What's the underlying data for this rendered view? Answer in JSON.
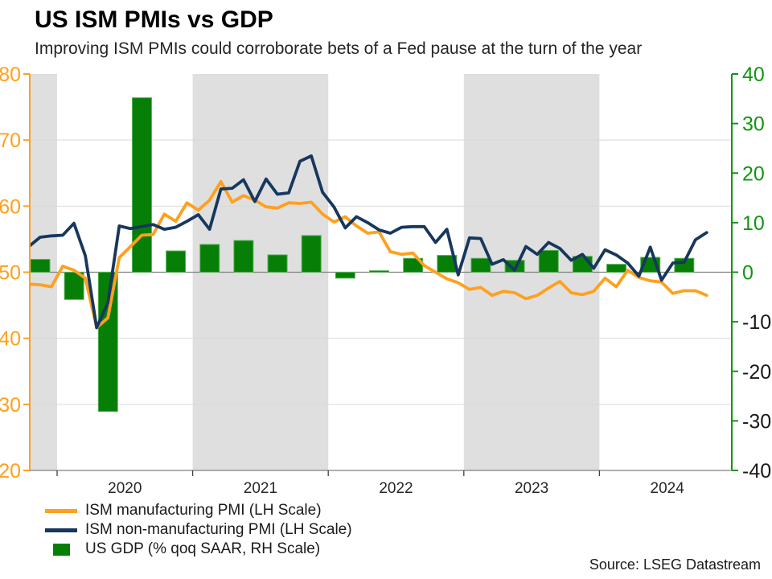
{
  "header": {
    "title": "US ISM PMIs vs GDP",
    "subtitle": "Improving ISM PMIs could corroborate bets of a Fed pause at the turn of the year"
  },
  "footer": {
    "source": "Source: LSEG Datastream"
  },
  "legend": {
    "items": [
      {
        "label": "ISM manufacturing PMI (LH Scale)",
        "swatch": "line",
        "color": "#FFA01E"
      },
      {
        "label": "ISM non-manufacturing PMI (LH Scale)",
        "swatch": "line",
        "color": "#17375E"
      },
      {
        "label": "US GDP (% qoq SAAR, RH Scale)",
        "swatch": "square",
        "color": "#077F07"
      }
    ]
  },
  "chart_data": {
    "type": "combo_line_bar",
    "title": "US ISM PMIs vs GDP",
    "months_start": "2019-10",
    "months_end": "2024-10",
    "series": [
      {
        "name": "ISM manufacturing PMI (LH Scale)",
        "type": "line",
        "axis": "left",
        "color": "#FFA01E",
        "values": [
          48.2,
          48.1,
          47.8,
          50.9,
          50.3,
          49.1,
          41.6,
          43.1,
          52.2,
          53.9,
          55.6,
          55.7,
          58.8,
          57.7,
          60.5,
          59.4,
          60.9,
          63.7,
          60.6,
          61.6,
          60.9,
          59.9,
          59.7,
          60.5,
          60.4,
          60.6,
          58.8,
          57.6,
          58.4,
          57.0,
          55.9,
          56.1,
          53.1,
          52.7,
          52.9,
          51.0,
          50.0,
          49.0,
          48.4,
          47.4,
          47.7,
          46.5,
          47.1,
          46.9,
          46.0,
          46.5,
          47.6,
          48.6,
          46.9,
          46.6,
          47.1,
          49.1,
          47.8,
          50.3,
          49.2,
          48.7,
          48.5,
          46.8,
          47.2,
          47.2,
          46.5
        ]
      },
      {
        "name": "ISM non-manufacturing PMI (LH Scale)",
        "type": "line",
        "axis": "left",
        "color": "#17375E",
        "values": [
          53.9,
          55.3,
          55.5,
          55.6,
          57.4,
          52.5,
          41.6,
          45.4,
          57.0,
          56.6,
          56.9,
          57.2,
          56.5,
          56.8,
          57.7,
          58.7,
          56.5,
          62.6,
          62.7,
          64.0,
          60.7,
          64.1,
          61.8,
          62.0,
          66.8,
          67.6,
          62.1,
          59.9,
          56.7,
          58.4,
          57.5,
          56.4,
          55.9,
          56.8,
          56.9,
          56.9,
          54.5,
          56.5,
          49.6,
          55.2,
          55.1,
          51.2,
          51.9,
          50.3,
          53.9,
          52.7,
          54.5,
          53.6,
          51.8,
          52.7,
          50.6,
          53.4,
          52.6,
          51.4,
          49.4,
          53.8,
          48.8,
          51.4,
          51.5,
          54.9,
          56.0
        ]
      },
      {
        "name": "US GDP (% qoq SAAR, RH Scale)",
        "type": "bar",
        "axis": "right",
        "color": "#077F07",
        "border_color": "#58B058",
        "quarters": [
          "2019 Q4",
          "2020 Q1",
          "2020 Q2",
          "2020 Q3",
          "2020 Q4",
          "2021 Q1",
          "2021 Q2",
          "2021 Q3",
          "2021 Q4",
          "2022 Q1",
          "2022 Q2",
          "2022 Q3",
          "2022 Q4",
          "2023 Q1",
          "2023 Q2",
          "2023 Q3",
          "2023 Q4",
          "2024 Q1",
          "2024 Q2",
          "2024 Q3"
        ],
        "values": [
          2.6,
          -5.5,
          -28.1,
          35.2,
          4.3,
          5.6,
          6.4,
          3.5,
          7.4,
          -1.2,
          0.3,
          2.8,
          3.4,
          2.8,
          2.4,
          4.4,
          3.2,
          1.6,
          3.0,
          2.8
        ]
      }
    ],
    "left_axis": {
      "min": 20,
      "max": 80,
      "ticks": [
        80,
        70,
        60,
        50,
        40,
        30,
        20
      ],
      "gridlines": [
        70,
        60,
        40,
        30
      ],
      "color": "#FFA01E"
    },
    "right_axis": {
      "min": -40,
      "max": 40,
      "ticks": [
        40,
        30,
        20,
        10,
        0,
        -10,
        -20,
        -30,
        -40
      ],
      "color": "#129512",
      "negative_label_color": "#1a1a1a"
    },
    "x_axis": {
      "year_ticks": [
        2020,
        2021,
        2022,
        2023,
        2024
      ],
      "label_color": "#262626"
    },
    "zero_line_left_value": 50,
    "shaded_bands": [
      {
        "from": 2019,
        "to": 2020
      },
      {
        "from": 2021,
        "to": 2022
      },
      {
        "from": 2023,
        "to": 2024
      }
    ],
    "band_color": "#DFDFDF",
    "grid_color": "#D9D9D9",
    "zero_line_color": "#7F7F7F"
  }
}
